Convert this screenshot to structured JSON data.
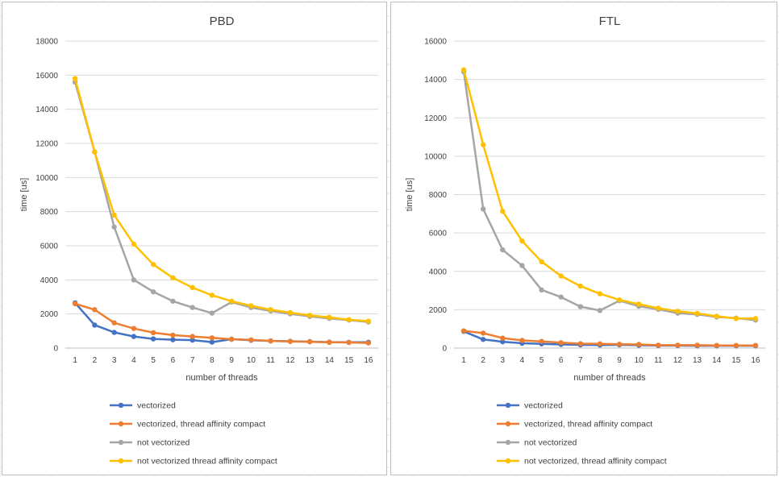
{
  "colors": {
    "vectorized": "#4472C4",
    "vectorized_affinity": "#ED7D31",
    "not_vectorized": "#A5A5A5",
    "not_vectorized_affinity": "#FFC000",
    "gridline": "#D9D9D9",
    "text": "#404040"
  },
  "chart_data": [
    {
      "type": "line",
      "title": "PBD",
      "xlabel": "number of threads",
      "ylabel": "time [us]",
      "categories": [
        "1",
        "2",
        "3",
        "4",
        "5",
        "6",
        "7",
        "8",
        "9",
        "10",
        "11",
        "12",
        "13",
        "14",
        "15",
        "16"
      ],
      "ylim": [
        0,
        18000
      ],
      "yticks": [
        0,
        2000,
        4000,
        6000,
        8000,
        10000,
        12000,
        14000,
        16000,
        18000
      ],
      "grid": true,
      "legend_position": "bottom",
      "series": [
        {
          "name": "vectorized",
          "color_key": "vectorized",
          "values": [
            2650,
            1350,
            920,
            680,
            540,
            490,
            470,
            350,
            520,
            460,
            420,
            400,
            380,
            350,
            340,
            340
          ]
        },
        {
          "name": "vectorized, thread affinity compact",
          "color_key": "vectorized_affinity",
          "values": [
            2600,
            2250,
            1480,
            1150,
            900,
            760,
            680,
            600,
            520,
            480,
            420,
            390,
            370,
            340,
            330,
            300
          ]
        },
        {
          "name": "not vectorized",
          "color_key": "not_vectorized",
          "values": [
            15600,
            11500,
            7100,
            4000,
            3300,
            2750,
            2380,
            2050,
            2700,
            2380,
            2180,
            2010,
            1860,
            1740,
            1640,
            1530
          ]
        },
        {
          "name": "not vectorized thread affinity compact",
          "color_key": "not_vectorized_affinity",
          "values": [
            15800,
            11500,
            7800,
            6100,
            4900,
            4120,
            3550,
            3100,
            2750,
            2480,
            2250,
            2080,
            1920,
            1800,
            1670,
            1580
          ]
        }
      ]
    },
    {
      "type": "line",
      "title": "FTL",
      "xlabel": "number of threads",
      "ylabel": "time [us]",
      "categories": [
        "1",
        "2",
        "3",
        "4",
        "5",
        "6",
        "7",
        "8",
        "9",
        "10",
        "11",
        "12",
        "13",
        "14",
        "15",
        "16"
      ],
      "ylim": [
        0,
        16000
      ],
      "yticks": [
        0,
        2000,
        4000,
        6000,
        8000,
        10000,
        12000,
        14000,
        16000
      ],
      "grid": true,
      "legend_position": "bottom",
      "series": [
        {
          "name": "vectorized",
          "color_key": "vectorized",
          "values": [
            870,
            450,
            330,
            250,
            220,
            190,
            170,
            160,
            170,
            150,
            130,
            130,
            120,
            120,
            120,
            120
          ]
        },
        {
          "name": "vectorized, thread affinity compact",
          "color_key": "vectorized_affinity",
          "values": [
            900,
            780,
            520,
            400,
            350,
            280,
            230,
            220,
            200,
            190,
            150,
            150,
            150,
            140,
            140,
            140
          ]
        },
        {
          "name": "not vectorized",
          "color_key": "not_vectorized",
          "values": [
            14400,
            7250,
            5120,
            4300,
            3030,
            2660,
            2160,
            1960,
            2470,
            2180,
            2020,
            1820,
            1760,
            1620,
            1560,
            1460
          ]
        },
        {
          "name": "not vectorized, thread affinity compact",
          "color_key": "not_vectorized_affinity",
          "values": [
            14500,
            10600,
            7130,
            5580,
            4500,
            3760,
            3230,
            2830,
            2510,
            2290,
            2080,
            1920,
            1810,
            1660,
            1540,
            1540
          ]
        }
      ]
    }
  ]
}
